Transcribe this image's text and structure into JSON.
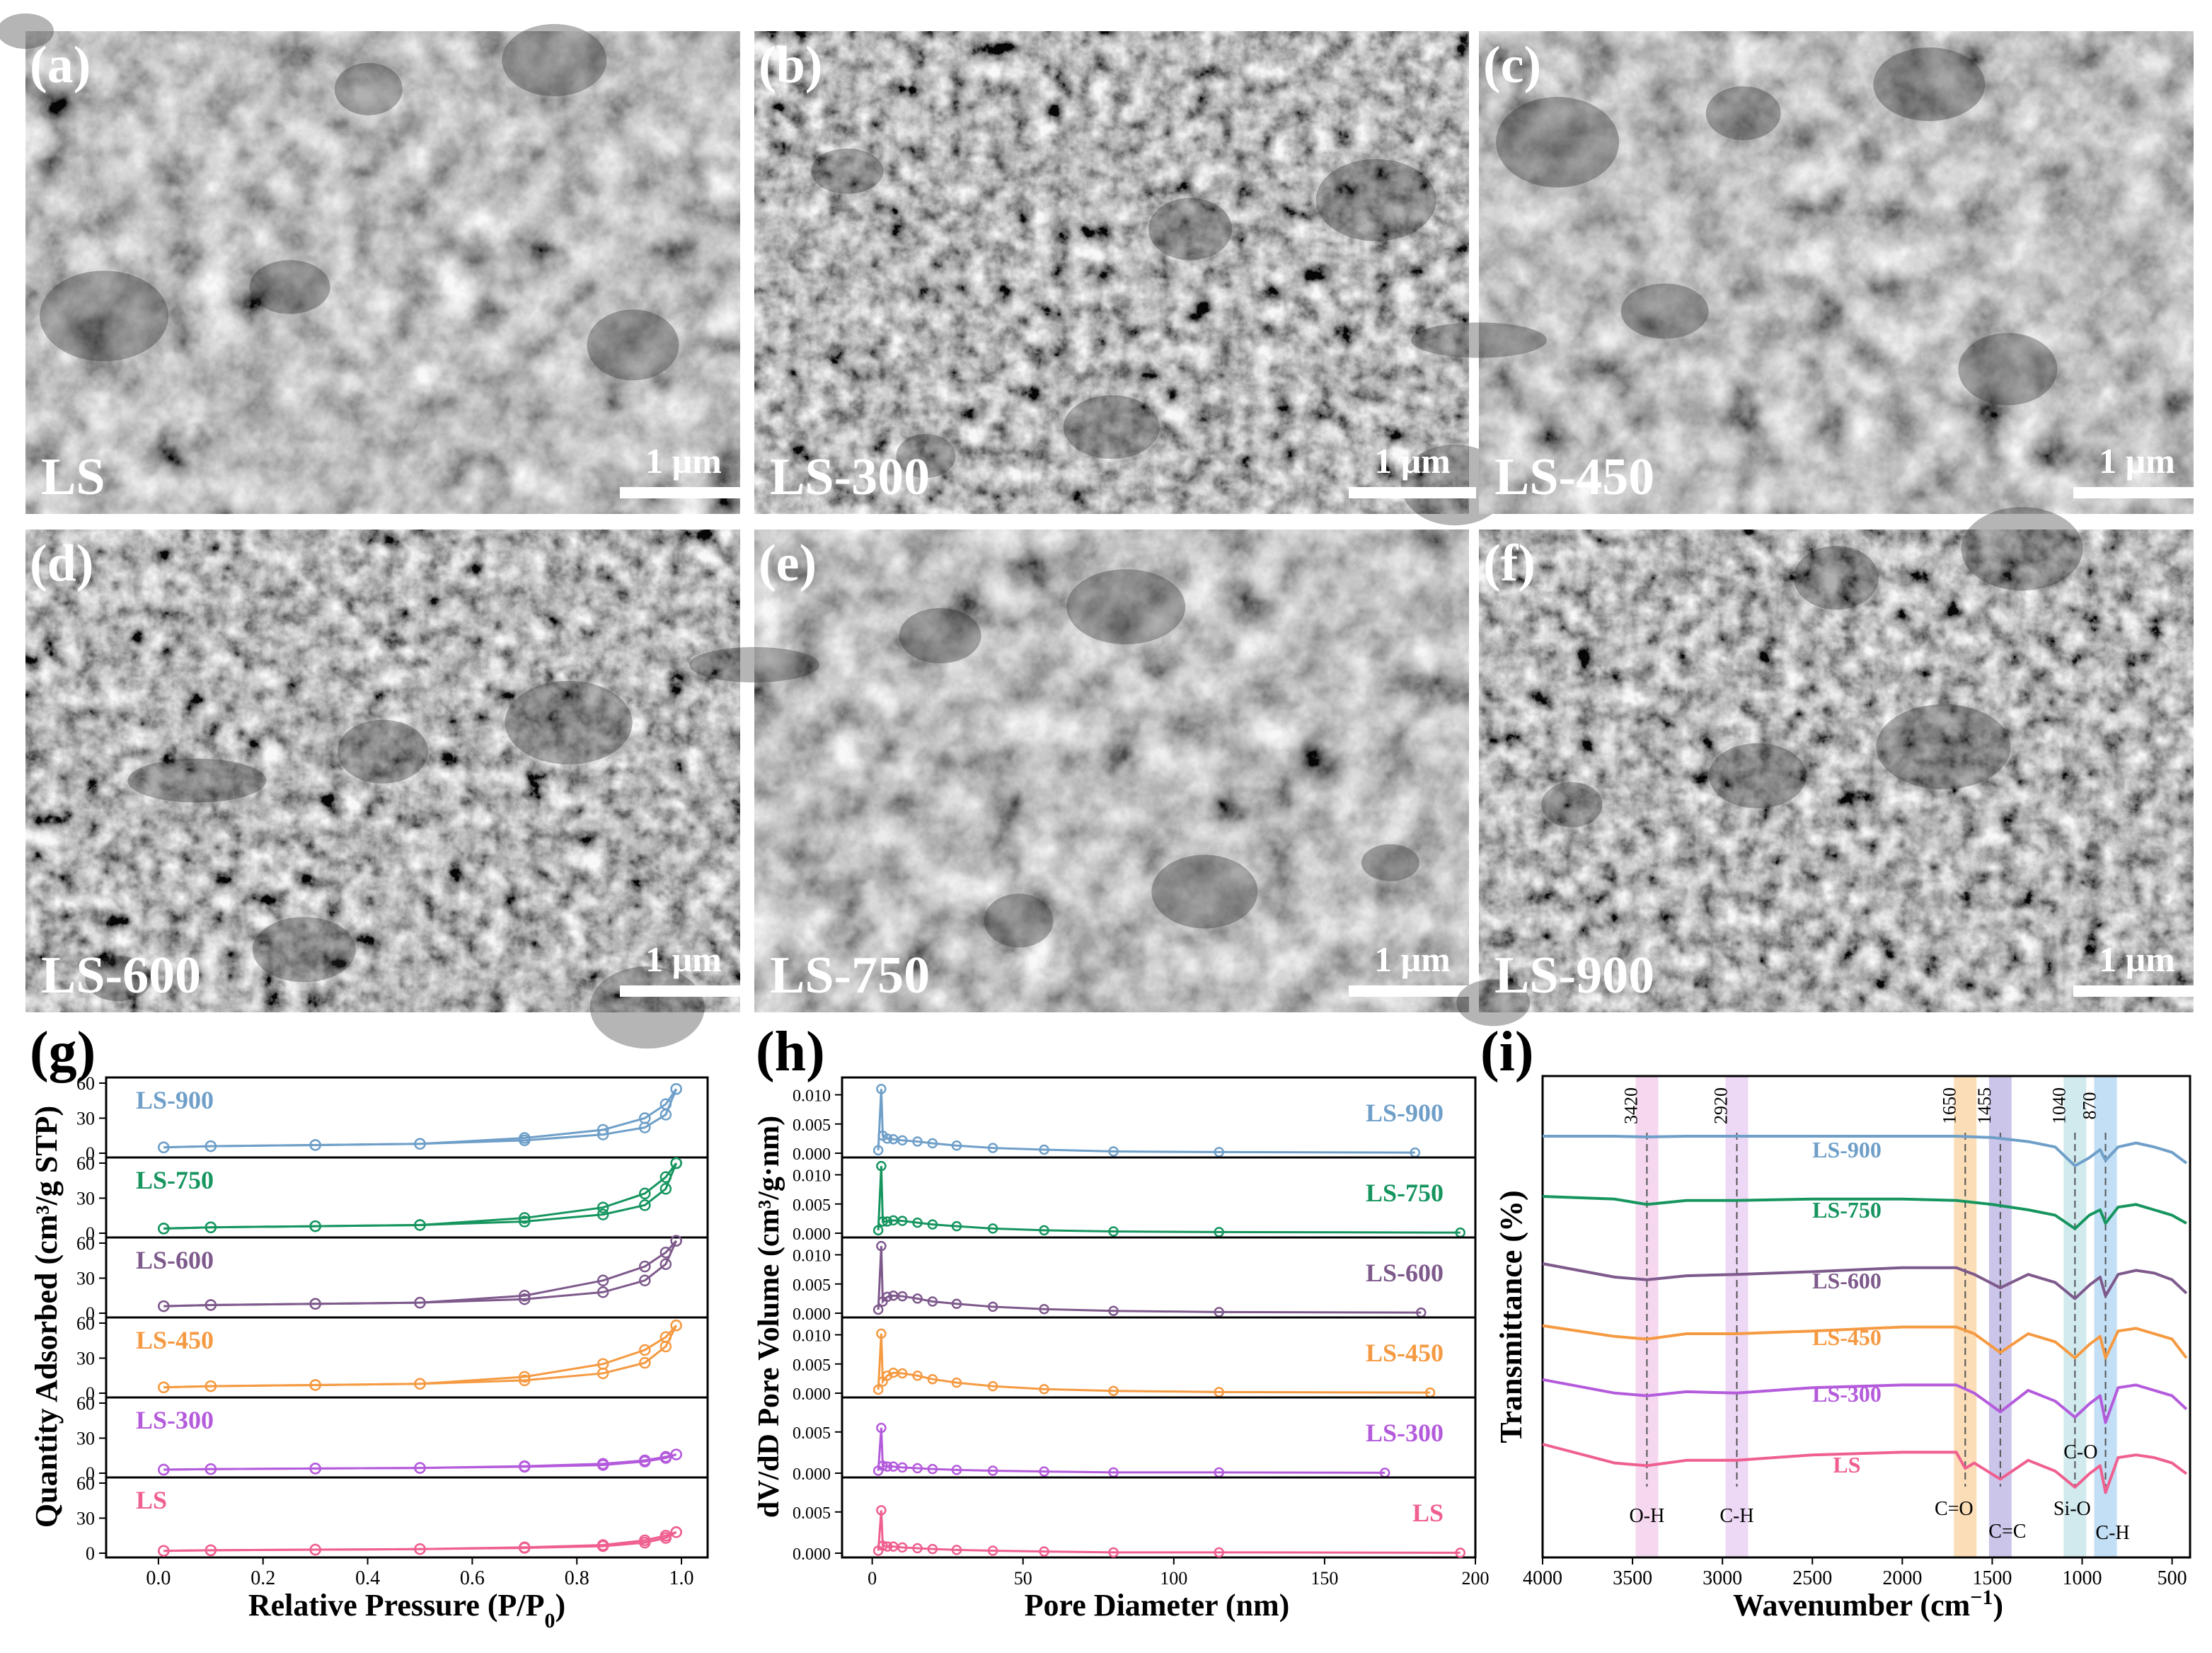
{
  "sem_panels": [
    {
      "tag": "(a)",
      "sample": "LS",
      "scale": "1 μm"
    },
    {
      "tag": "(b)",
      "sample": "LS-300",
      "scale": "1 μm"
    },
    {
      "tag": "(c)",
      "sample": "LS-450",
      "scale": "1 μm"
    },
    {
      "tag": "(d)",
      "sample": "LS-600",
      "scale": "1 μm"
    },
    {
      "tag": "(e)",
      "sample": "LS-750",
      "scale": "1 μm"
    },
    {
      "tag": "(f)",
      "sample": "LS-900",
      "scale": "1 μm"
    }
  ],
  "colors": {
    "LS-900": "#6f9fc8",
    "LS-750": "#16955f",
    "LS-600": "#7e5a8c",
    "LS-450": "#f59a42",
    "LS-300": "#b45bdc",
    "LS": "#ef5f8f"
  },
  "chart_data": [
    {
      "type": "line",
      "panel_tag": "(g)",
      "xlabel": "Relative Pressure (P/P0)",
      "ylabel": "Quantity Adsorbed (cm³/g STP)",
      "xlim": [
        -0.1,
        1.05
      ],
      "x_ticks": [
        "0.0",
        "0.2",
        "0.4",
        "0.6",
        "0.8",
        "1.0"
      ],
      "y_ticks": [
        "0",
        "30",
        "60"
      ],
      "ylim": [
        0,
        60
      ],
      "series": [
        {
          "name": "LS-900",
          "x": [
            0.01,
            0.1,
            0.3,
            0.5,
            0.7,
            0.85,
            0.93,
            0.97,
            0.99
          ],
          "adsorption": [
            5,
            6,
            7,
            8,
            11,
            16,
            22,
            33,
            55
          ],
          "desorption": [
            5,
            6,
            7,
            8,
            13,
            20,
            30,
            42,
            55
          ]
        },
        {
          "name": "LS-750",
          "x": [
            0.01,
            0.1,
            0.3,
            0.5,
            0.7,
            0.85,
            0.93,
            0.97,
            0.99
          ],
          "adsorption": [
            4,
            5,
            6,
            7,
            10,
            16,
            24,
            38,
            60
          ],
          "desorption": [
            4,
            5,
            6,
            7,
            13,
            22,
            34,
            48,
            60
          ]
        },
        {
          "name": "LS-600",
          "x": [
            0.01,
            0.1,
            0.3,
            0.5,
            0.7,
            0.85,
            0.93,
            0.97,
            0.99
          ],
          "adsorption": [
            6,
            7,
            8,
            9,
            12,
            18,
            28,
            42,
            62
          ],
          "desorption": [
            6,
            7,
            8,
            9,
            15,
            28,
            40,
            52,
            62
          ]
        },
        {
          "name": "LS-450",
          "x": [
            0.01,
            0.1,
            0.3,
            0.5,
            0.7,
            0.85,
            0.93,
            0.97,
            0.99
          ],
          "adsorption": [
            5,
            6,
            7,
            8,
            11,
            17,
            26,
            40,
            58
          ],
          "desorption": [
            5,
            6,
            7,
            8,
            14,
            25,
            37,
            48,
            58
          ]
        },
        {
          "name": "LS-300",
          "x": [
            0.01,
            0.1,
            0.3,
            0.5,
            0.7,
            0.85,
            0.93,
            0.97,
            0.99
          ],
          "adsorption": [
            3,
            3.5,
            4,
            4.5,
            5.5,
            7,
            10,
            13,
            16
          ],
          "desorption": [
            3,
            3.5,
            4,
            4.5,
            6,
            8,
            11,
            14,
            16
          ]
        },
        {
          "name": "LS",
          "x": [
            0.01,
            0.1,
            0.3,
            0.5,
            0.7,
            0.85,
            0.93,
            0.97,
            0.99
          ],
          "adsorption": [
            2,
            2.5,
            3,
            3.5,
            4.5,
            6,
            9,
            13,
            18
          ],
          "desorption": [
            2,
            2.5,
            3,
            3.5,
            5,
            7,
            11,
            15,
            18
          ]
        }
      ]
    },
    {
      "type": "line",
      "panel_tag": "(h)",
      "xlabel": "Pore Diameter (nm)",
      "ylabel": "dV/dD Pore Volume (cm³/g·nm)",
      "xlim": [
        -10,
        200
      ],
      "x_ticks": [
        "0",
        "50",
        "100",
        "150",
        "200"
      ],
      "series": [
        {
          "name": "LS-900",
          "y_ticks": [
            "0.000",
            "0.005",
            "0.010"
          ],
          "ylim": [
            0,
            0.012
          ],
          "x": [
            2,
            3,
            3.5,
            5,
            7,
            10,
            15,
            20,
            28,
            40,
            57,
            80,
            115,
            180
          ],
          "y": [
            0.0005,
            0.011,
            0.003,
            0.0025,
            0.0024,
            0.0022,
            0.002,
            0.0017,
            0.0013,
            0.0009,
            0.0006,
            0.0003,
            0.0002,
            0.0001
          ]
        },
        {
          "name": "LS-750",
          "y_ticks": [
            "0.000",
            "0.005",
            "0.010"
          ],
          "ylim": [
            0,
            0.012
          ],
          "x": [
            2,
            3,
            3.5,
            5,
            7,
            10,
            15,
            20,
            28,
            40,
            57,
            80,
            115,
            195
          ],
          "y": [
            0.0005,
            0.0115,
            0.002,
            0.002,
            0.0022,
            0.0021,
            0.0018,
            0.0015,
            0.0012,
            0.0008,
            0.0005,
            0.0003,
            0.0002,
            0.0001
          ]
        },
        {
          "name": "LS-600",
          "y_ticks": [
            "0.000",
            "0.005",
            "0.010"
          ],
          "ylim": [
            0,
            0.012
          ],
          "x": [
            2,
            3,
            3.5,
            5,
            7,
            10,
            15,
            20,
            28,
            40,
            57,
            80,
            115,
            182
          ],
          "y": [
            0.0006,
            0.0115,
            0.002,
            0.0028,
            0.003,
            0.0029,
            0.0025,
            0.002,
            0.0016,
            0.0011,
            0.0007,
            0.0004,
            0.0002,
            0.0001
          ]
        },
        {
          "name": "LS-450",
          "y_ticks": [
            "0.000",
            "0.005",
            "0.010"
          ],
          "ylim": [
            0,
            0.012
          ],
          "x": [
            2,
            3,
            3.5,
            5,
            7,
            10,
            15,
            20,
            28,
            40,
            57,
            80,
            115,
            185
          ],
          "y": [
            0.0006,
            0.0102,
            0.002,
            0.003,
            0.0035,
            0.0034,
            0.003,
            0.0024,
            0.0018,
            0.0012,
            0.0007,
            0.0004,
            0.0002,
            0.0001
          ]
        },
        {
          "name": "LS-300",
          "y_ticks": [
            "0.000",
            "0.005"
          ],
          "ylim": [
            0,
            0.0085
          ],
          "x": [
            2,
            3,
            3.5,
            5,
            7,
            10,
            15,
            20,
            28,
            40,
            57,
            80,
            115,
            170
          ],
          "y": [
            0.0003,
            0.0055,
            0.0009,
            0.0008,
            0.0008,
            0.0007,
            0.0006,
            0.0005,
            0.0004,
            0.0003,
            0.0002,
            0.0001,
            0.0001,
            5e-05
          ]
        },
        {
          "name": "LS",
          "y_ticks": [
            "0.000",
            "0.005"
          ],
          "ylim": [
            0,
            0.0085
          ],
          "x": [
            2,
            3,
            3.5,
            5,
            7,
            10,
            15,
            20,
            28,
            40,
            57,
            80,
            115,
            195
          ],
          "y": [
            0.0003,
            0.0052,
            0.0009,
            0.0008,
            0.0008,
            0.0007,
            0.0006,
            0.0005,
            0.0004,
            0.0003,
            0.0002,
            0.0001,
            0.0001,
            5e-05
          ]
        }
      ]
    },
    {
      "type": "line",
      "panel_tag": "(i)",
      "xlabel": "Wavenumber (cm−1)",
      "ylabel": "Transmittance (%)",
      "xlim": [
        4000,
        400
      ],
      "x_ticks": [
        "4000",
        "3500",
        "3000",
        "2500",
        "2000",
        "1500",
        "1000",
        "500"
      ],
      "bands": [
        {
          "value": "3420",
          "group": "O-H",
          "color": "#e9a8dd"
        },
        {
          "value": "2920",
          "group": "C-H",
          "color": "#d8a8e8"
        },
        {
          "value": "1650",
          "group": "C=O",
          "color": "#f7b561"
        },
        {
          "value": "1455",
          "group": "C=C",
          "color": "#8f7ed0"
        },
        {
          "value": "1040",
          "group": "Si-O",
          "color": "#9ad0da"
        },
        {
          "value": "870",
          "group": "C-H",
          "color": "#7ab7e8"
        }
      ],
      "band_extra_label": "C-O",
      "series": [
        {
          "name": "LS-900",
          "offset": 0,
          "x": [
            4000,
            3600,
            3420,
            3200,
            2920,
            2500,
            2000,
            1700,
            1500,
            1300,
            1150,
            1040,
            960,
            900,
            870,
            800,
            700,
            600,
            500,
            420
          ],
          "y": [
            0,
            0,
            0.5,
            0,
            0,
            0,
            0,
            0,
            1,
            4,
            8,
            22,
            16,
            10,
            18,
            8,
            5,
            8,
            12,
            20
          ]
        },
        {
          "name": "LS-750",
          "offset": 1,
          "x": [
            4000,
            3600,
            3420,
            3200,
            2920,
            2500,
            2000,
            1700,
            1500,
            1300,
            1150,
            1040,
            960,
            900,
            870,
            800,
            700,
            600,
            500,
            420
          ],
          "y": [
            0,
            2,
            6,
            3,
            3,
            2,
            2,
            3,
            6,
            10,
            14,
            24,
            14,
            10,
            20,
            8,
            6,
            10,
            14,
            20
          ]
        },
        {
          "name": "LS-600",
          "offset": 2,
          "x": [
            4000,
            3600,
            3420,
            3200,
            2920,
            2500,
            2000,
            1700,
            1600,
            1455,
            1300,
            1150,
            1040,
            960,
            900,
            870,
            800,
            700,
            600,
            500,
            420
          ],
          "y": [
            0,
            10,
            12,
            9,
            8,
            6,
            3,
            3,
            8,
            18,
            8,
            14,
            26,
            16,
            10,
            24,
            8,
            5,
            7,
            12,
            22
          ]
        },
        {
          "name": "LS-450",
          "offset": 3,
          "x": [
            4000,
            3600,
            3420,
            3200,
            2920,
            2500,
            2000,
            1700,
            1600,
            1455,
            1300,
            1150,
            1040,
            960,
            900,
            870,
            800,
            700,
            600,
            500,
            420
          ],
          "y": [
            4,
            12,
            14,
            10,
            10,
            8,
            5,
            5,
            10,
            24,
            10,
            16,
            28,
            18,
            12,
            28,
            8,
            6,
            10,
            14,
            28
          ]
        },
        {
          "name": "LS-300",
          "offset": 4,
          "x": [
            4000,
            3600,
            3420,
            3200,
            2920,
            2500,
            2000,
            1700,
            1600,
            1455,
            1300,
            1150,
            1040,
            960,
            900,
            870,
            800,
            700,
            600,
            500,
            420
          ],
          "y": [
            2,
            12,
            14,
            11,
            12,
            8,
            6,
            6,
            12,
            26,
            10,
            18,
            30,
            20,
            14,
            34,
            8,
            6,
            10,
            14,
            24
          ]
        },
        {
          "name": "LS",
          "offset": 5,
          "x": [
            4000,
            3600,
            3420,
            3200,
            2920,
            2500,
            2000,
            1700,
            1650,
            1600,
            1455,
            1300,
            1150,
            1040,
            960,
            900,
            870,
            800,
            700,
            600,
            500,
            420
          ],
          "y": [
            0,
            14,
            16,
            12,
            12,
            8,
            6,
            6,
            18,
            14,
            26,
            12,
            20,
            32,
            22,
            16,
            36,
            10,
            8,
            10,
            14,
            22
          ]
        }
      ]
    }
  ],
  "panel_tags": {
    "g": "(g)",
    "h": "(h)",
    "i": "(i)"
  }
}
